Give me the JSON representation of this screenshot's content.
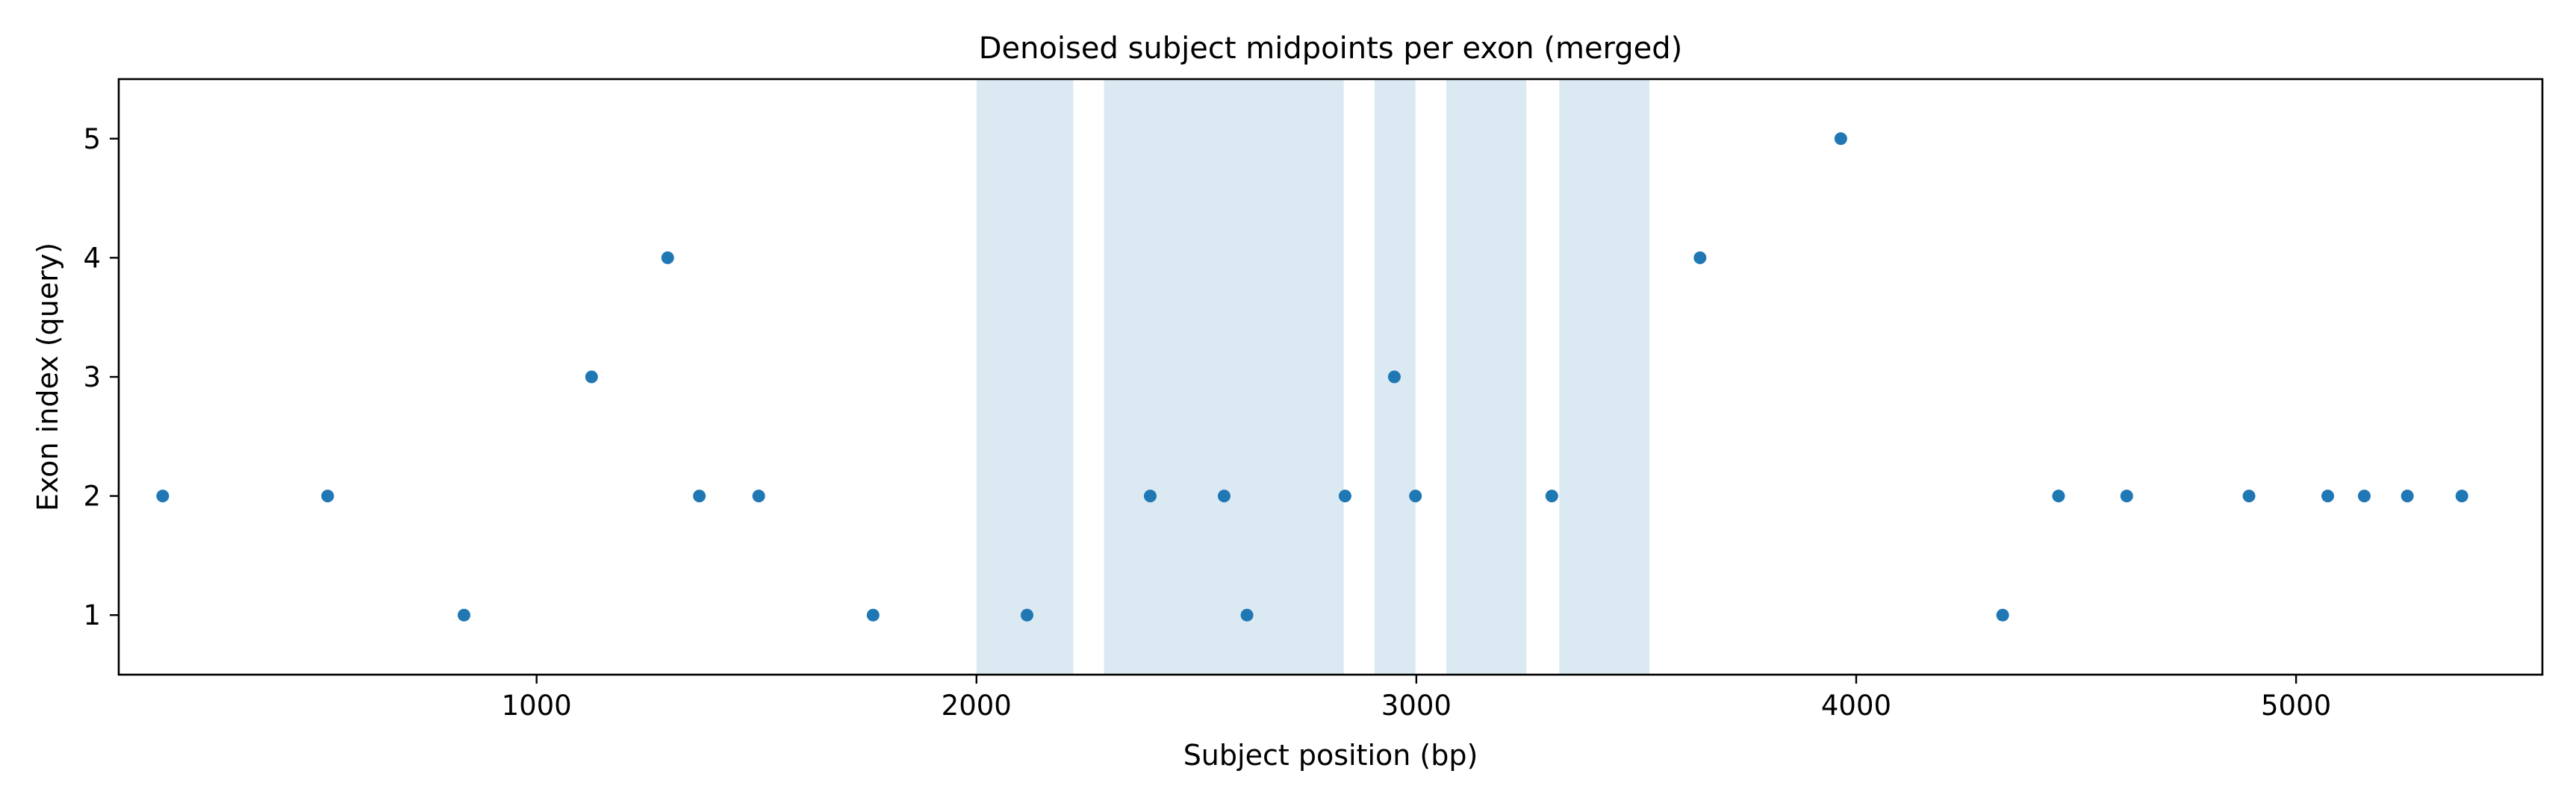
{
  "chart_data": {
    "type": "scatter",
    "title": "Denoised subject midpoints per exon (merged)",
    "xlabel": "Subject position (bp)",
    "ylabel": "Exon index (query)",
    "xlim": [
      50,
      5560
    ],
    "ylim": [
      0.5,
      5.5
    ],
    "xticks": [
      1000,
      2000,
      3000,
      4000,
      5000
    ],
    "yticks": [
      1,
      2,
      3,
      4,
      5
    ],
    "grid": false,
    "point_color": "#1f77b4",
    "shade_color": "#dbe9f2",
    "shaded_regions": [
      {
        "x0": 2000,
        "x1": 2220
      },
      {
        "x0": 2290,
        "x1": 2835
      },
      {
        "x0": 2905,
        "x1": 2998
      },
      {
        "x0": 3068,
        "x1": 3250
      },
      {
        "x0": 3325,
        "x1": 3530
      }
    ],
    "points": [
      {
        "x": 150,
        "y": 2
      },
      {
        "x": 525,
        "y": 2
      },
      {
        "x": 835,
        "y": 1
      },
      {
        "x": 1125,
        "y": 3
      },
      {
        "x": 1298,
        "y": 4
      },
      {
        "x": 1370,
        "y": 2
      },
      {
        "x": 1505,
        "y": 2
      },
      {
        "x": 1765,
        "y": 1
      },
      {
        "x": 2115,
        "y": 1
      },
      {
        "x": 2395,
        "y": 2
      },
      {
        "x": 2563,
        "y": 2
      },
      {
        "x": 2615,
        "y": 1
      },
      {
        "x": 2838,
        "y": 2
      },
      {
        "x": 2950,
        "y": 3
      },
      {
        "x": 2998,
        "y": 2
      },
      {
        "x": 3308,
        "y": 2
      },
      {
        "x": 3645,
        "y": 4
      },
      {
        "x": 3965,
        "y": 5
      },
      {
        "x": 4333,
        "y": 1
      },
      {
        "x": 4460,
        "y": 2
      },
      {
        "x": 4615,
        "y": 2
      },
      {
        "x": 4893,
        "y": 2
      },
      {
        "x": 5072,
        "y": 2
      },
      {
        "x": 5155,
        "y": 2
      },
      {
        "x": 5253,
        "y": 2
      },
      {
        "x": 5377,
        "y": 2
      }
    ]
  }
}
